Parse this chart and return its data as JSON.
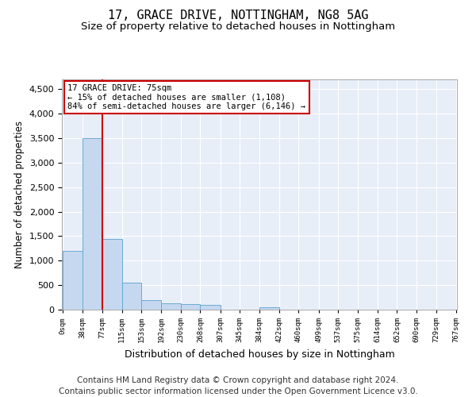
{
  "title1": "17, GRACE DRIVE, NOTTINGHAM, NG8 5AG",
  "title2": "Size of property relative to detached houses in Nottingham",
  "xlabel": "Distribution of detached houses by size in Nottingham",
  "ylabel": "Number of detached properties",
  "footer1": "Contains HM Land Registry data © Crown copyright and database right 2024.",
  "footer2": "Contains public sector information licensed under the Open Government Licence v3.0.",
  "annotation_title": "17 GRACE DRIVE: 75sqm",
  "annotation_line1": "← 15% of detached houses are smaller (1,108)",
  "annotation_line2": "84% of semi-detached houses are larger (6,146) →",
  "bar_edges": [
    0,
    38,
    77,
    115,
    153,
    192,
    230,
    268,
    307,
    345,
    384,
    422,
    460,
    499,
    537,
    575,
    614,
    652,
    690,
    729,
    767
  ],
  "bar_heights": [
    1200,
    3500,
    1450,
    550,
    200,
    130,
    110,
    100,
    0,
    0,
    50,
    0,
    0,
    0,
    0,
    0,
    0,
    0,
    0,
    0
  ],
  "bar_color": "#c5d8f0",
  "bar_edge_color": "#6aabd2",
  "vline_color": "#cc0000",
  "vline_x": 77,
  "ylim": [
    0,
    4700
  ],
  "yticks": [
    0,
    500,
    1000,
    1500,
    2000,
    2500,
    3000,
    3500,
    4000,
    4500
  ],
  "bg_color": "#e8eef8",
  "grid_color": "#ffffff",
  "annotation_box_color": "#cc0000",
  "title1_fontsize": 11,
  "title2_fontsize": 9.5,
  "xlabel_fontsize": 9,
  "ylabel_fontsize": 8.5,
  "footer_fontsize": 7.5
}
